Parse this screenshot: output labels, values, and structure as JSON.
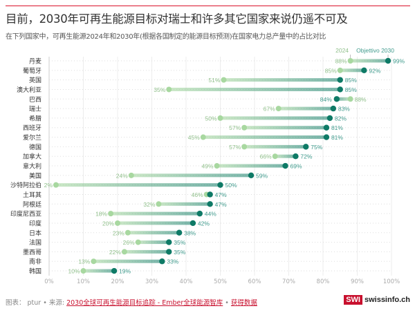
{
  "title": "目前，2030年可再生能源目标对瑞士和许多其它国家来说仍遥不可及",
  "subtitle": "在下列国家中，可再生能源2024年和2030年(根据各国制定的能源目标预测)在国家电力总产量中的占比对比",
  "footer": {
    "prefix": "图表： ptur • 来源: ",
    "source_link": "2030全球可再生能源目标追踪 - Ember全球能源智库",
    "sep": " • ",
    "data_link": "获得数据"
  },
  "logo": {
    "swi": "SWI",
    "site": "swissinfo.ch"
  },
  "chart_data": {
    "type": "dumbbell",
    "title": "",
    "xlabel": "",
    "ylabel": "",
    "xlim": [
      0,
      100
    ],
    "x_ticks": [
      "0%",
      "10%",
      "20%",
      "30%",
      "40%",
      "50%",
      "60%",
      "70%",
      "80%",
      "90%",
      "100%"
    ],
    "grid": true,
    "legend": {
      "position": "top-right",
      "series": [
        "2024",
        "Objettivo 2030"
      ]
    },
    "colors": {
      "2024": "#a8d8a0",
      "2030": "#0e7a66",
      "label2024": "#8fbf8a",
      "label2030": "#3f9a8c"
    },
    "categories": [
      "丹麦",
      "葡萄牙",
      "英国",
      "澳大利亚",
      "巴西",
      "瑞士",
      "希腊",
      "西班牙",
      "爱尔兰",
      "德国",
      "加拿大",
      "意大利",
      "美国",
      "沙特阿拉伯",
      "土耳其",
      "阿根廷",
      "印度尼西亚",
      "印度",
      "日本",
      "法国",
      "墨西哥",
      "南非",
      "韩国"
    ],
    "series": [
      {
        "name": "2024",
        "values": [
          88,
          85,
          51,
          35,
          88,
          67,
          50,
          57,
          45,
          57,
          66,
          49,
          24,
          2,
          46,
          32,
          18,
          20,
          23,
          26,
          22,
          13,
          10
        ]
      },
      {
        "name": "Objettivo 2030",
        "values": [
          99,
          92,
          85,
          85,
          84,
          83,
          82,
          81,
          81,
          75,
          72,
          69,
          59,
          50,
          47,
          47,
          44,
          42,
          38,
          35,
          35,
          33,
          19
        ]
      }
    ]
  }
}
